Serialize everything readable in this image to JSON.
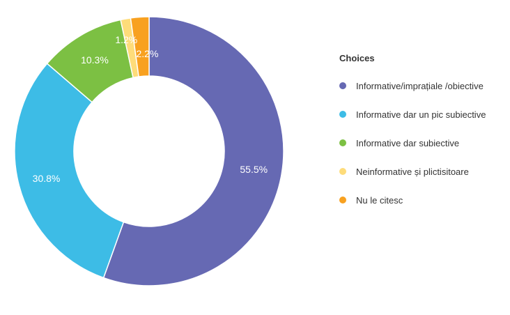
{
  "chart_data": {
    "type": "pie",
    "variant": "donut",
    "legend_title": "Choices",
    "legend_position": "right",
    "categories": [
      "Informative/imprațiale /obiective",
      "Informative dar un pic subiective",
      "Informative dar subiective",
      "Neinformative și plictisitoare",
      "Nu le citesc"
    ],
    "values": [
      55.5,
      30.8,
      10.3,
      1.2,
      2.2
    ],
    "labels": [
      "55.5%",
      "30.8%",
      "10.3%",
      "1.2%",
      "2.2%"
    ],
    "colors": [
      "#6669b3",
      "#3dbce6",
      "#7cc043",
      "#fedc7a",
      "#f8a120"
    ]
  }
}
